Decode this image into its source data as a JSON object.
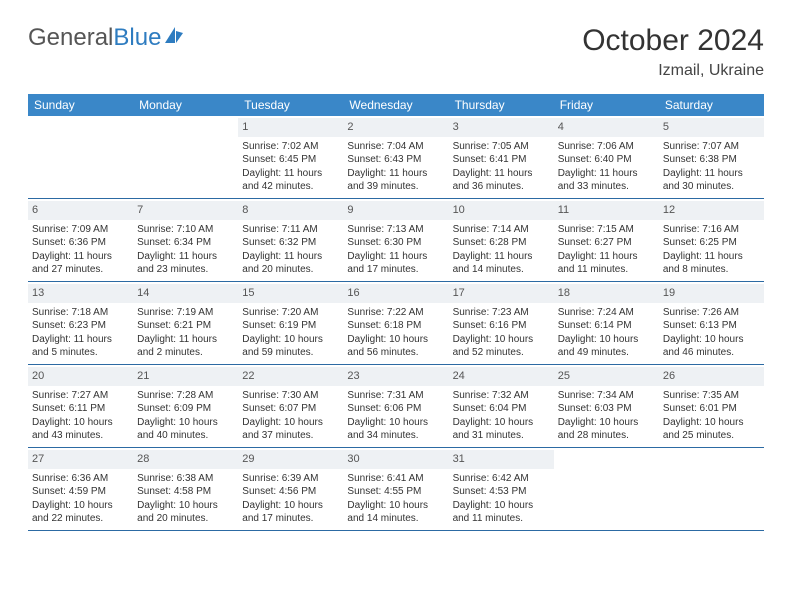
{
  "logo": {
    "part1": "General",
    "part2": "Blue"
  },
  "title": "October 2024",
  "location": "Izmail, Ukraine",
  "colors": {
    "header_bg": "#3a87c8",
    "daynum_bg": "#eef1f4",
    "row_border": "#2c6aa3",
    "logo_blue": "#2e7cc0",
    "text": "#333333"
  },
  "weekdays": [
    "Sunday",
    "Monday",
    "Tuesday",
    "Wednesday",
    "Thursday",
    "Friday",
    "Saturday"
  ],
  "weeks": [
    [
      null,
      null,
      {
        "n": "1",
        "sr": "7:02 AM",
        "ss": "6:45 PM",
        "dl": "11 hours and 42 minutes."
      },
      {
        "n": "2",
        "sr": "7:04 AM",
        "ss": "6:43 PM",
        "dl": "11 hours and 39 minutes."
      },
      {
        "n": "3",
        "sr": "7:05 AM",
        "ss": "6:41 PM",
        "dl": "11 hours and 36 minutes."
      },
      {
        "n": "4",
        "sr": "7:06 AM",
        "ss": "6:40 PM",
        "dl": "11 hours and 33 minutes."
      },
      {
        "n": "5",
        "sr": "7:07 AM",
        "ss": "6:38 PM",
        "dl": "11 hours and 30 minutes."
      }
    ],
    [
      {
        "n": "6",
        "sr": "7:09 AM",
        "ss": "6:36 PM",
        "dl": "11 hours and 27 minutes."
      },
      {
        "n": "7",
        "sr": "7:10 AM",
        "ss": "6:34 PM",
        "dl": "11 hours and 23 minutes."
      },
      {
        "n": "8",
        "sr": "7:11 AM",
        "ss": "6:32 PM",
        "dl": "11 hours and 20 minutes."
      },
      {
        "n": "9",
        "sr": "7:13 AM",
        "ss": "6:30 PM",
        "dl": "11 hours and 17 minutes."
      },
      {
        "n": "10",
        "sr": "7:14 AM",
        "ss": "6:28 PM",
        "dl": "11 hours and 14 minutes."
      },
      {
        "n": "11",
        "sr": "7:15 AM",
        "ss": "6:27 PM",
        "dl": "11 hours and 11 minutes."
      },
      {
        "n": "12",
        "sr": "7:16 AM",
        "ss": "6:25 PM",
        "dl": "11 hours and 8 minutes."
      }
    ],
    [
      {
        "n": "13",
        "sr": "7:18 AM",
        "ss": "6:23 PM",
        "dl": "11 hours and 5 minutes."
      },
      {
        "n": "14",
        "sr": "7:19 AM",
        "ss": "6:21 PM",
        "dl": "11 hours and 2 minutes."
      },
      {
        "n": "15",
        "sr": "7:20 AM",
        "ss": "6:19 PM",
        "dl": "10 hours and 59 minutes."
      },
      {
        "n": "16",
        "sr": "7:22 AM",
        "ss": "6:18 PM",
        "dl": "10 hours and 56 minutes."
      },
      {
        "n": "17",
        "sr": "7:23 AM",
        "ss": "6:16 PM",
        "dl": "10 hours and 52 minutes."
      },
      {
        "n": "18",
        "sr": "7:24 AM",
        "ss": "6:14 PM",
        "dl": "10 hours and 49 minutes."
      },
      {
        "n": "19",
        "sr": "7:26 AM",
        "ss": "6:13 PM",
        "dl": "10 hours and 46 minutes."
      }
    ],
    [
      {
        "n": "20",
        "sr": "7:27 AM",
        "ss": "6:11 PM",
        "dl": "10 hours and 43 minutes."
      },
      {
        "n": "21",
        "sr": "7:28 AM",
        "ss": "6:09 PM",
        "dl": "10 hours and 40 minutes."
      },
      {
        "n": "22",
        "sr": "7:30 AM",
        "ss": "6:07 PM",
        "dl": "10 hours and 37 minutes."
      },
      {
        "n": "23",
        "sr": "7:31 AM",
        "ss": "6:06 PM",
        "dl": "10 hours and 34 minutes."
      },
      {
        "n": "24",
        "sr": "7:32 AM",
        "ss": "6:04 PM",
        "dl": "10 hours and 31 minutes."
      },
      {
        "n": "25",
        "sr": "7:34 AM",
        "ss": "6:03 PM",
        "dl": "10 hours and 28 minutes."
      },
      {
        "n": "26",
        "sr": "7:35 AM",
        "ss": "6:01 PM",
        "dl": "10 hours and 25 minutes."
      }
    ],
    [
      {
        "n": "27",
        "sr": "6:36 AM",
        "ss": "4:59 PM",
        "dl": "10 hours and 22 minutes."
      },
      {
        "n": "28",
        "sr": "6:38 AM",
        "ss": "4:58 PM",
        "dl": "10 hours and 20 minutes."
      },
      {
        "n": "29",
        "sr": "6:39 AM",
        "ss": "4:56 PM",
        "dl": "10 hours and 17 minutes."
      },
      {
        "n": "30",
        "sr": "6:41 AM",
        "ss": "4:55 PM",
        "dl": "10 hours and 14 minutes."
      },
      {
        "n": "31",
        "sr": "6:42 AM",
        "ss": "4:53 PM",
        "dl": "10 hours and 11 minutes."
      },
      null,
      null
    ]
  ],
  "labels": {
    "sunrise": "Sunrise:",
    "sunset": "Sunset:",
    "daylight": "Daylight:"
  }
}
